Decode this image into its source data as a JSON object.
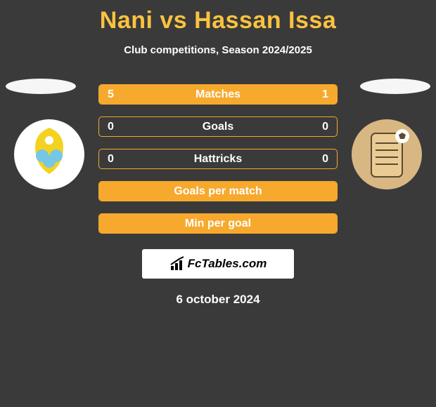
{
  "header": {
    "title": "Nani vs Hassan Issa",
    "title_color": "#fbc23f",
    "subtitle": "Club competitions, Season 2024/2025",
    "subtitle_color": "#ffffff"
  },
  "background_color": "#3a3a3a",
  "avatars": {
    "left_color": "#f6f6f6",
    "right_color": "#f6f6f6"
  },
  "clubs": {
    "left": {
      "bg": "#ffffff",
      "accent1": "#f4d21f",
      "accent2": "#75c7e6"
    },
    "right": {
      "bg": "#d9b783",
      "accent1": "#ffffff",
      "accent2": "#5a4a2f"
    }
  },
  "bars": {
    "border_color": "#f7a92e",
    "fill_color": "#f7a92e",
    "text_color": "#ffffff",
    "rows": [
      {
        "label": "Matches",
        "left": "5",
        "right": "1",
        "left_pct": 83.3,
        "right_pct": 16.7
      },
      {
        "label": "Goals",
        "left": "0",
        "right": "0",
        "left_pct": 0,
        "right_pct": 0
      },
      {
        "label": "Hattricks",
        "left": "0",
        "right": "0",
        "left_pct": 0,
        "right_pct": 0
      },
      {
        "label": "Goals per match",
        "left": "",
        "right": "",
        "left_pct": 100,
        "right_pct": 0
      },
      {
        "label": "Min per goal",
        "left": "",
        "right": "",
        "left_pct": 100,
        "right_pct": 0
      }
    ]
  },
  "brand": {
    "text": "FcTables.com",
    "bg": "#ffffff",
    "color": "#000000"
  },
  "date": "6 october 2024"
}
